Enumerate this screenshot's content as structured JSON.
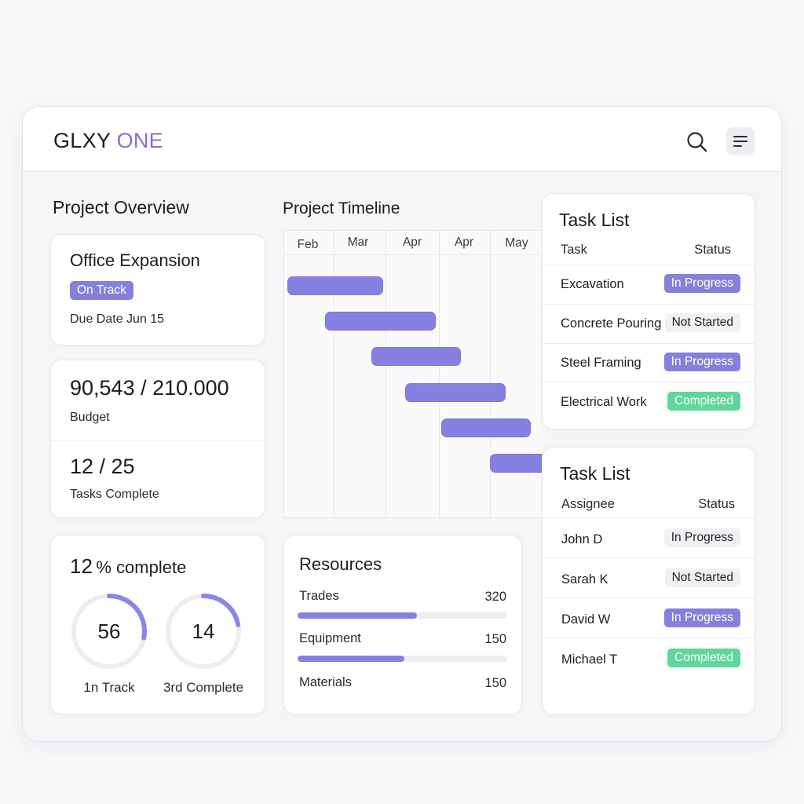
{
  "app": {
    "logo_part1": "GLXY",
    "logo_part2": "ONE"
  },
  "colors": {
    "accent": "#8580dc",
    "success": "#5fd69a",
    "neutral_badge": "#f1f1f4"
  },
  "icons": {
    "search": "search-icon",
    "menu": "menu-icon"
  },
  "overview": {
    "title": "Project Overview",
    "project": {
      "name": "Office Expansion",
      "status": "On Track",
      "due": "Due Date Jun 15"
    },
    "budget": {
      "value": "90,543 / 210.000",
      "label": "Budget"
    },
    "tasks": {
      "value": "12 / 25",
      "label": "Tasks Complete"
    },
    "completion": {
      "title_num": "12",
      "title_text": "% complete",
      "rings": [
        {
          "value": "56",
          "label": "1n Track",
          "fraction": 0.28
        },
        {
          "value": "14",
          "label": "3rd Complete",
          "fraction": 0.22
        }
      ]
    }
  },
  "timeline": {
    "title": "Project Timeline",
    "months": [
      "Feb",
      "Mar",
      "Apr",
      "Apr",
      "May"
    ]
  },
  "resources": {
    "title": "Resources",
    "items": [
      {
        "label": "Trades",
        "value": "320",
        "fraction": 0.57
      },
      {
        "label": "Equipment",
        "value": "150",
        "fraction": 0.51
      },
      {
        "label": "Materials",
        "value": "150"
      }
    ]
  },
  "task_list_1": {
    "title": "Task List",
    "col1": "Task",
    "col2": "Status",
    "rows": [
      {
        "name": "Excavation",
        "status": "In Progress",
        "style": "purple"
      },
      {
        "name": "Concrete Pouring",
        "status": "Not Started",
        "style": "grey"
      },
      {
        "name": "Steel Framing",
        "status": "In Progress",
        "style": "purple"
      },
      {
        "name": "Electrical Work",
        "status": "Completed",
        "style": "green"
      }
    ]
  },
  "task_list_2": {
    "title": "Task List",
    "col1": "Assignee",
    "col2": "Status",
    "rows": [
      {
        "name": "John D",
        "status": "In Progress",
        "style": "grey"
      },
      {
        "name": "Sarah K",
        "status": "Not Started",
        "style": "grey"
      },
      {
        "name": "David W",
        "status": "In Progress",
        "style": "purple"
      },
      {
        "name": "Michael T",
        "status": "Completed",
        "style": "green"
      }
    ]
  }
}
